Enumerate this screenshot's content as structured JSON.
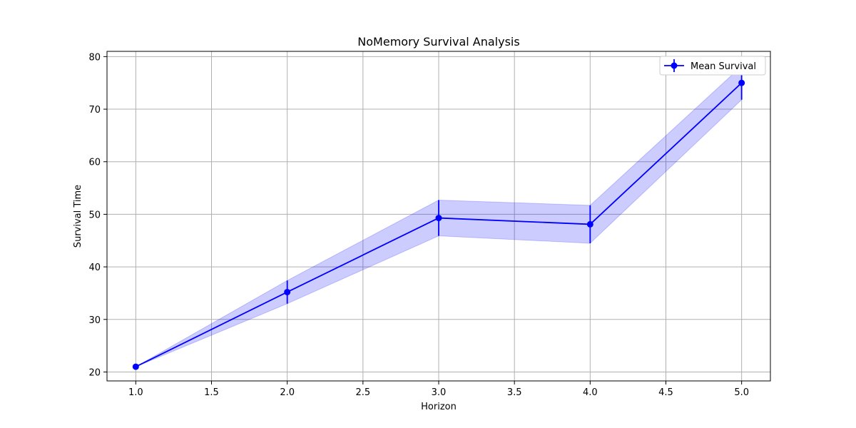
{
  "chart_data": {
    "type": "line",
    "title": "NoMemory Survival Analysis",
    "xlabel": "Horizon",
    "ylabel": "Survival Time",
    "xlim": [
      0.81,
      5.19
    ],
    "ylim": [
      18.3,
      81.0
    ],
    "xticks": [
      "1.0",
      "1.5",
      "2.0",
      "2.5",
      "3.0",
      "3.5",
      "4.0",
      "4.5",
      "5.0"
    ],
    "yticks": [
      "20",
      "30",
      "40",
      "50",
      "60",
      "70",
      "80"
    ],
    "grid": true,
    "legend_position": "top-right",
    "series": [
      {
        "name": "Mean Survival",
        "color": "#0000ff",
        "band_color": "#0000ff",
        "band_opacity": 0.2,
        "marker": "circle",
        "x": [
          1.0,
          2.0,
          3.0,
          4.0,
          5.0
        ],
        "y": [
          21.0,
          35.2,
          49.3,
          48.1,
          75.0
        ],
        "error": [
          0.0,
          2.2,
          3.4,
          3.6,
          3.2
        ]
      }
    ]
  }
}
